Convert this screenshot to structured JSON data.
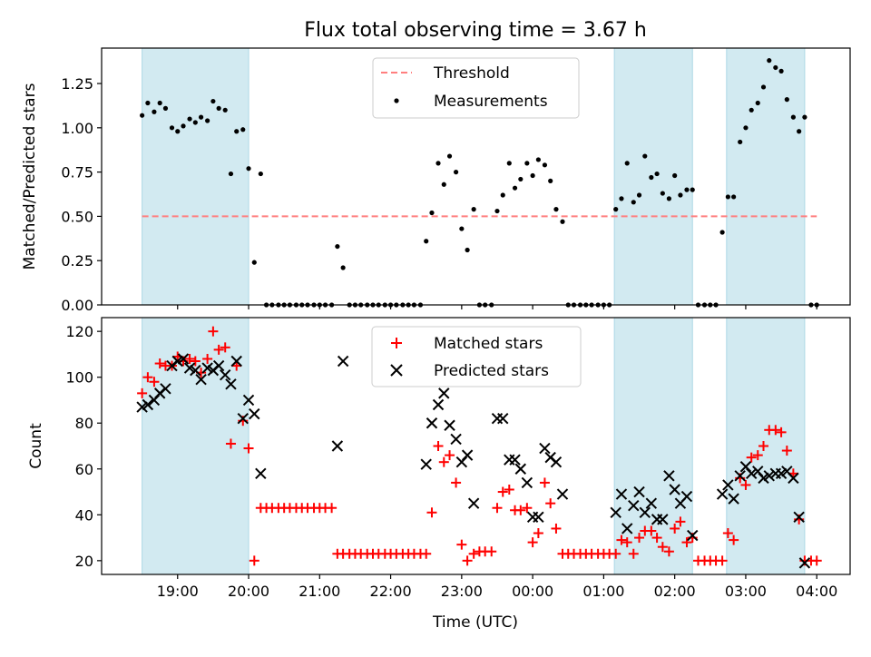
{
  "figure": {
    "title": "Flux total observing time = 3.67 h",
    "xlabel": "Time (UTC)",
    "x_tick_labels": [
      "19:00",
      "20:00",
      "21:00",
      "22:00",
      "23:00",
      "00:00",
      "01:00",
      "02:00",
      "03:00",
      "04:00"
    ],
    "x_tick_hours": [
      19,
      20,
      21,
      22,
      23,
      24,
      25,
      26,
      27,
      28
    ],
    "x_range_hours": [
      17.93,
      28.47
    ],
    "shaded_intervals_hours": [
      [
        18.5,
        20.0
      ],
      [
        25.15,
        26.25
      ],
      [
        26.73,
        27.83
      ]
    ],
    "shade_color": "#add8e6"
  },
  "chart_data": [
    {
      "type": "scatter",
      "ylabel": "Matched/Predicted stars",
      "ylim": [
        0,
        1.45
      ],
      "y_ticks": [
        0,
        0.25,
        0.5,
        0.75,
        1.0,
        1.25
      ],
      "y_tick_labels": [
        "0.00",
        "0.25",
        "0.50",
        "0.75",
        "1.00",
        "1.25"
      ],
      "legend_position": "top-center",
      "threshold": {
        "name": "Threshold",
        "value": 0.5,
        "x_range_hours": [
          18.5,
          28.0
        ],
        "color": "#ff7f7f"
      },
      "series": [
        {
          "name": "Measurements",
          "color": "#000000",
          "x": [
            18.5,
            18.58,
            18.67,
            18.75,
            18.83,
            18.92,
            19.0,
            19.08,
            19.17,
            19.25,
            19.33,
            19.42,
            19.5,
            19.58,
            19.67,
            19.75,
            19.83,
            19.92,
            20.0,
            20.08,
            20.17,
            20.25,
            20.33,
            20.42,
            20.5,
            20.58,
            20.67,
            20.75,
            20.83,
            20.92,
            21.0,
            21.08,
            21.17,
            21.25,
            21.33,
            21.42,
            21.5,
            21.58,
            21.67,
            21.75,
            21.83,
            21.92,
            22.0,
            22.08,
            22.17,
            22.25,
            22.33,
            22.42,
            22.5,
            22.58,
            22.67,
            22.75,
            22.83,
            22.92,
            23.0,
            23.08,
            23.17,
            23.25,
            23.33,
            23.42,
            23.5,
            23.58,
            23.67,
            23.75,
            23.83,
            23.92,
            24.0,
            24.08,
            24.17,
            24.25,
            24.33,
            24.42,
            24.5,
            24.58,
            24.67,
            24.75,
            24.83,
            24.92,
            25.0,
            25.08,
            25.17,
            25.25,
            25.33,
            25.42,
            25.5,
            25.58,
            25.67,
            25.75,
            25.83,
            25.92,
            26.0,
            26.08,
            26.17,
            26.25,
            26.33,
            26.42,
            26.5,
            26.58,
            26.67,
            26.75,
            26.83,
            26.92,
            27.0,
            27.08,
            27.17,
            27.25,
            27.33,
            27.42,
            27.5,
            27.58,
            27.67,
            27.75,
            27.83,
            27.92,
            28.0
          ],
          "y": [
            1.07,
            1.14,
            1.09,
            1.14,
            1.11,
            1.0,
            0.98,
            1.01,
            1.05,
            1.03,
            1.06,
            1.04,
            1.15,
            1.11,
            1.1,
            0.74,
            0.98,
            0.99,
            0.77,
            0.24,
            0.74,
            0.0,
            0.0,
            0.0,
            0.0,
            0.0,
            0.0,
            0.0,
            0.0,
            0.0,
            0.0,
            0.0,
            0.0,
            0.33,
            0.21,
            0.0,
            0.0,
            0.0,
            0.0,
            0.0,
            0.0,
            0.0,
            0.0,
            0.0,
            0.0,
            0.0,
            0.0,
            0.0,
            0.36,
            0.52,
            0.8,
            0.68,
            0.84,
            0.75,
            0.43,
            0.31,
            0.54,
            0.0,
            0.0,
            0.0,
            0.53,
            0.62,
            0.8,
            0.66,
            0.71,
            0.8,
            0.73,
            0.82,
            0.79,
            0.7,
            0.54,
            0.47,
            0.0,
            0.0,
            0.0,
            0.0,
            0.0,
            0.0,
            0.0,
            0.0,
            0.54,
            0.6,
            0.8,
            0.58,
            0.62,
            0.84,
            0.72,
            0.74,
            0.63,
            0.6,
            0.73,
            0.62,
            0.65,
            0.65,
            0.0,
            0.0,
            0.0,
            0.0,
            0.41,
            0.61,
            0.61,
            0.92,
            1.0,
            1.1,
            1.14,
            1.23,
            1.38,
            1.34,
            1.32,
            1.16,
            1.06,
            0.98,
            1.06,
            0.0,
            0.0
          ]
        }
      ]
    },
    {
      "type": "scatter",
      "ylabel": "Count",
      "ylim": [
        14,
        126
      ],
      "y_ticks": [
        20,
        40,
        60,
        80,
        100,
        120
      ],
      "y_tick_labels": [
        "20",
        "40",
        "60",
        "80",
        "100",
        "120"
      ],
      "legend_position": "top-center",
      "series": [
        {
          "name": "Matched stars",
          "color": "#ff0000",
          "marker": "plus",
          "x": [
            18.5,
            18.58,
            18.67,
            18.75,
            18.83,
            18.92,
            19.0,
            19.08,
            19.17,
            19.25,
            19.33,
            19.42,
            19.5,
            19.58,
            19.67,
            19.75,
            19.83,
            19.92,
            20.0,
            20.08,
            20.17,
            20.25,
            20.33,
            20.42,
            20.5,
            20.58,
            20.67,
            20.75,
            20.83,
            20.92,
            21.0,
            21.08,
            21.17,
            21.25,
            21.33,
            21.42,
            21.5,
            21.58,
            21.67,
            21.75,
            21.83,
            21.92,
            22.0,
            22.08,
            22.17,
            22.25,
            22.33,
            22.42,
            22.5,
            22.58,
            22.67,
            22.75,
            22.83,
            22.92,
            23.0,
            23.08,
            23.17,
            23.25,
            23.33,
            23.42,
            23.5,
            23.58,
            23.67,
            23.75,
            23.83,
            23.92,
            24.0,
            24.08,
            24.17,
            24.25,
            24.33,
            24.42,
            24.5,
            24.58,
            24.67,
            24.75,
            24.83,
            24.92,
            25.0,
            25.08,
            25.17,
            25.25,
            25.33,
            25.42,
            25.5,
            25.58,
            25.67,
            25.75,
            25.83,
            25.92,
            26.0,
            26.08,
            26.17,
            26.25,
            26.33,
            26.42,
            26.5,
            26.58,
            26.67,
            26.75,
            26.83,
            26.92,
            27.0,
            27.08,
            27.17,
            27.25,
            27.33,
            27.42,
            27.5,
            27.58,
            27.67,
            27.75,
            27.83,
            27.92,
            28.0
          ],
          "y": [
            93,
            100,
            98,
            106,
            105,
            105,
            109,
            107,
            108,
            107,
            102,
            108,
            120,
            112,
            113,
            71,
            105,
            81,
            69,
            20,
            43,
            43,
            43,
            43,
            43,
            43,
            43,
            43,
            43,
            43,
            43,
            43,
            43,
            23,
            23,
            23,
            23,
            23,
            23,
            23,
            23,
            23,
            23,
            23,
            23,
            23,
            23,
            23,
            23,
            41,
            70,
            63,
            66,
            54,
            27,
            20,
            23,
            24,
            24,
            24,
            43,
            50,
            51,
            42,
            42,
            43,
            28,
            32,
            54,
            45,
            34,
            23,
            23,
            23,
            23,
            23,
            23,
            23,
            23,
            23,
            23,
            29,
            28,
            23,
            30,
            33,
            33,
            30,
            26,
            24,
            34,
            37,
            28,
            30,
            20,
            20,
            20,
            20,
            20,
            32,
            29,
            56,
            53,
            65,
            66,
            70,
            77,
            77,
            76,
            68,
            58,
            38,
            20,
            20,
            20
          ]
        },
        {
          "name": "Predicted stars",
          "color": "#000000",
          "marker": "x",
          "x": [
            18.5,
            18.58,
            18.67,
            18.75,
            18.83,
            18.92,
            19.0,
            19.08,
            19.17,
            19.25,
            19.33,
            19.42,
            19.5,
            19.58,
            19.67,
            19.75,
            19.83,
            19.92,
            20.0,
            20.08,
            20.17,
            21.25,
            21.33,
            22.5,
            22.58,
            22.67,
            22.75,
            22.83,
            22.92,
            23.0,
            23.08,
            23.17,
            23.5,
            23.58,
            23.67,
            23.75,
            23.83,
            23.92,
            24.0,
            24.08,
            24.17,
            24.25,
            24.33,
            24.42,
            25.17,
            25.25,
            25.33,
            25.42,
            25.5,
            25.58,
            25.67,
            25.75,
            25.83,
            25.92,
            26.0,
            26.08,
            26.17,
            26.25,
            26.67,
            26.75,
            26.83,
            26.92,
            27.0,
            27.08,
            27.17,
            27.25,
            27.33,
            27.42,
            27.5,
            27.58,
            27.67,
            27.75,
            27.83
          ],
          "y": [
            87,
            88,
            90,
            93,
            95,
            105,
            107,
            108,
            104,
            103,
            99,
            104,
            103,
            105,
            101,
            97,
            107,
            82,
            90,
            84,
            58,
            70,
            107,
            62,
            80,
            88,
            93,
            79,
            73,
            63,
            66,
            45,
            82,
            82,
            64,
            64,
            60,
            54,
            39,
            39,
            69,
            65,
            63,
            49,
            41,
            49,
            34,
            44,
            50,
            41,
            45,
            38,
            38,
            57,
            51,
            45,
            48,
            31,
            49,
            53,
            47,
            57,
            61,
            58,
            59,
            56,
            57,
            58,
            58,
            59,
            56,
            39,
            19
          ]
        }
      ]
    }
  ]
}
